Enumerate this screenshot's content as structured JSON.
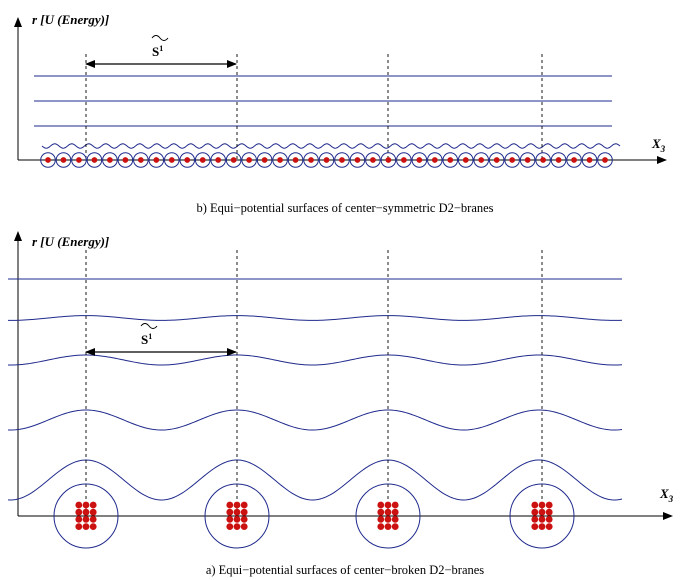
{
  "colors": {
    "surface": "#1f2a8c",
    "brane": "#cc1111",
    "axis": "#000000"
  },
  "top_panel": {
    "y_axis_label": "r [U (Energy)]",
    "x_axis_label": "X",
    "x_axis_subscript": "3",
    "period_label": "S",
    "period_superscript": "1",
    "caption": "b) Equi−potential surfaces of center−symmetric D2−branes",
    "flat_surface_count": 3,
    "brane_count": 37
  },
  "bottom_panel": {
    "y_axis_label": "r [U (Energy)]",
    "x_axis_label": "X",
    "x_axis_subscript": "3",
    "period_label": "S",
    "period_superscript": "1",
    "caption": "a) Equi−potential surfaces of center−broken D2−branes",
    "stack_count": 4,
    "branes_per_stack": 12,
    "surface_amplitudes": [
      0,
      0.12,
      0.25,
      0.5,
      1
    ]
  }
}
